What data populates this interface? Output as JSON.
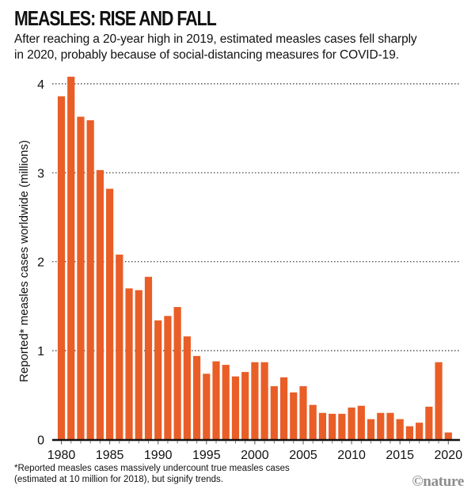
{
  "header": {
    "title": "MEASLES: RISE AND FALL",
    "subtitle_lines": [
      "After reaching a 20-year high in 2019, estimated measles cases fell sharply",
      "in 2020, probably because of social-distancing measures for COVID-19."
    ]
  },
  "footnote_lines": [
    "*Reported measles cases massively undercount true measles cases",
    "(estimated at 10 million for 2018), but signify trends."
  ],
  "credit": "©nature",
  "colors": {
    "bar": "#E95E27",
    "gridline": "#333333",
    "axis": "#111111",
    "credit": "#8e8e8e"
  },
  "chart_data": {
    "type": "bar",
    "title": "MEASLES: RISE AND FALL",
    "xlabel": "",
    "ylabel": "Reported* measles cases worldwide (millions)",
    "ylim": [
      0,
      4.1
    ],
    "yticks": [
      0,
      1,
      2,
      3,
      4
    ],
    "ytick_labels": [
      "0",
      "1",
      "2",
      "3",
      "4"
    ],
    "xticks": [
      1980,
      1985,
      1990,
      1995,
      2000,
      2005,
      2010,
      2015,
      2020
    ],
    "xtick_labels": [
      "1980",
      "1985",
      "1990",
      "1995",
      "2000",
      "2005",
      "2010",
      "2015",
      "2020"
    ],
    "grid": "horizontal-dotted",
    "legend": "none",
    "categories": [
      1980,
      1981,
      1982,
      1983,
      1984,
      1985,
      1986,
      1987,
      1988,
      1989,
      1990,
      1991,
      1992,
      1993,
      1994,
      1995,
      1996,
      1997,
      1998,
      1999,
      2000,
      2001,
      2002,
      2003,
      2004,
      2005,
      2006,
      2007,
      2008,
      2009,
      2010,
      2011,
      2012,
      2013,
      2014,
      2015,
      2016,
      2017,
      2018,
      2019,
      2020
    ],
    "values": [
      3.86,
      4.08,
      3.63,
      3.59,
      3.03,
      2.82,
      2.08,
      1.7,
      1.68,
      1.83,
      1.34,
      1.39,
      1.49,
      1.16,
      0.94,
      0.74,
      0.88,
      0.84,
      0.71,
      0.76,
      0.87,
      0.87,
      0.6,
      0.7,
      0.53,
      0.6,
      0.39,
      0.3,
      0.29,
      0.29,
      0.36,
      0.38,
      0.23,
      0.3,
      0.3,
      0.23,
      0.15,
      0.19,
      0.37,
      0.87,
      0.08
    ],
    "units": "millions of cases"
  }
}
